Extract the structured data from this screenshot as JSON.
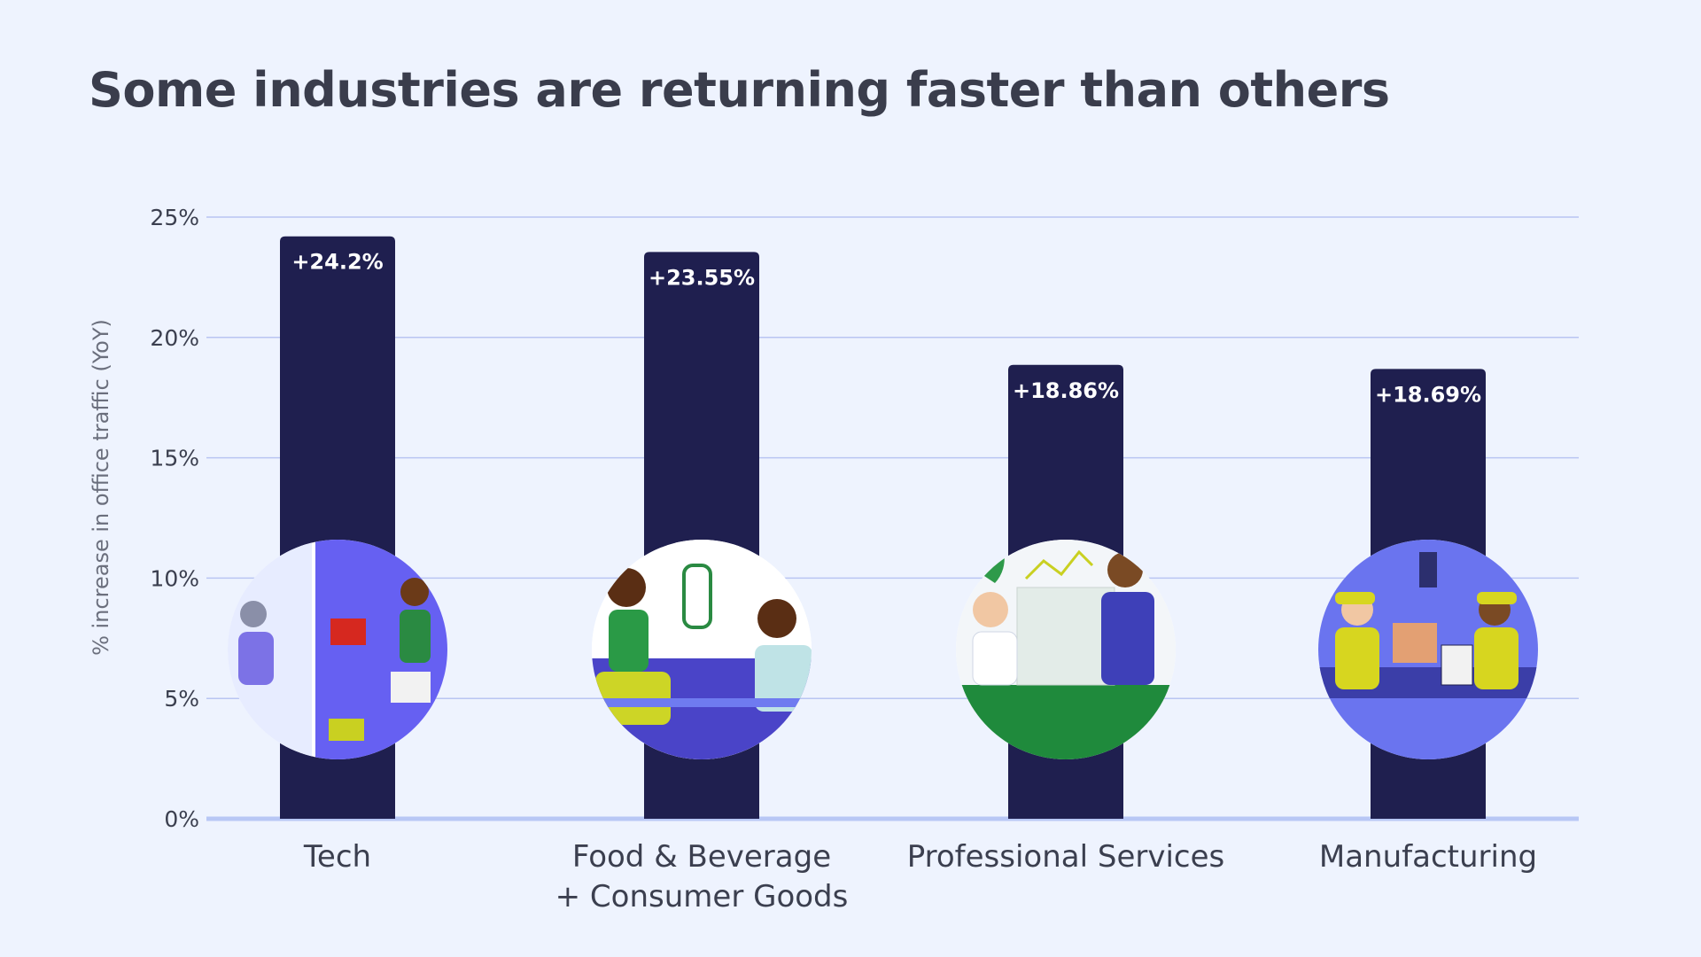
{
  "page": {
    "title": "Some industries are returning faster than others"
  },
  "colors": {
    "background": "#eef3fe",
    "bar": "#1f1f4f",
    "grid": "#b9c5f2",
    "baseline": "#b8c7f5",
    "text": "#3b3f4f",
    "value_label": "#ffffff"
  },
  "chart_data": {
    "type": "bar",
    "title": "Some industries are returning faster than others",
    "xlabel": "",
    "ylabel": "% increase in office traffic (YoY)",
    "ylim": [
      0,
      25
    ],
    "yticks": [
      0,
      5,
      10,
      15,
      20,
      25
    ],
    "ytick_labels": [
      "0%",
      "5%",
      "10%",
      "15%",
      "20%",
      "25%"
    ],
    "grid": true,
    "categories": [
      "Tech",
      "Food & Beverage\n+ Consumer Goods",
      "Professional Services",
      "Manufacturing"
    ],
    "values": [
      24.2,
      23.55,
      18.86,
      18.69
    ],
    "value_labels": [
      "+24.2%",
      "+23.55%",
      "+18.86%",
      "+18.69%"
    ],
    "illustrations": [
      "tech-office-illustration",
      "food-beverage-illustration",
      "professional-services-illustration",
      "manufacturing-illustration"
    ],
    "illustration_colors": [
      "#6660f2",
      "#4a44c8",
      "#1f8a3c",
      "#6a74ef"
    ]
  }
}
